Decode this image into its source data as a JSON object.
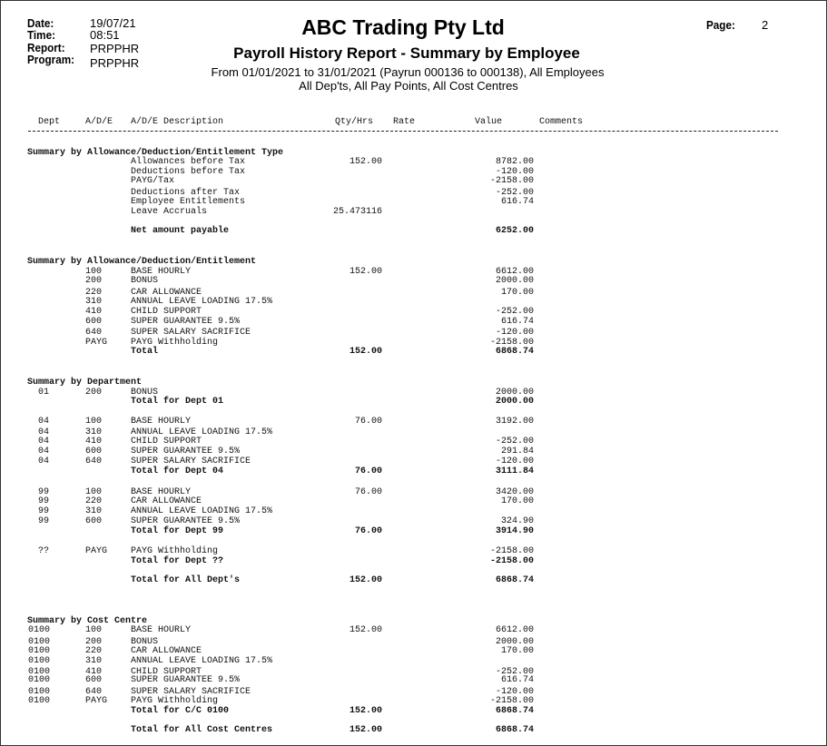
{
  "header": {
    "date_label": "Date:",
    "date": "19/07/21",
    "time_label": "Time:",
    "time": "08:51",
    "report_label": "Report:",
    "report": "PRPPHR",
    "program_label": "Program:",
    "program": "PRPPHR",
    "page_label": "Page:",
    "page": "2",
    "company": "ABC Trading Pty Ltd",
    "title": "Payroll History Report - Summary by Employee",
    "subtitle1": "From 01/01/2021 to 31/01/2021 (Payrun 000136 to 000138), All Employees",
    "subtitle2": "All Dep'ts, All Pay Points, All Cost Centres"
  },
  "columns": {
    "dept": "Dept",
    "ade": "A/D/E",
    "desc": "A/D/E Description",
    "qty": "Qty/Hrs",
    "rate": "Rate",
    "value": "Value",
    "comments": "Comments"
  },
  "rows": [
    {
      "heading": "Summary by Allowance/Deduction/Entitlement Type"
    },
    {
      "desc": "Allowances before Tax",
      "qty": "152.00",
      "value": "8782.00"
    },
    {
      "desc": "Deductions before Tax",
      "value": "-120.00"
    },
    {
      "desc": "PAYG/Tax",
      "value": "-2158.00"
    },
    {
      "desc": "Deductions after Tax",
      "value": "-252.00"
    },
    {
      "desc": "Employee Entitlements",
      "value": "616.74"
    },
    {
      "desc": "Leave Accruals",
      "qty": "25.473116"
    },
    {
      "desc": "Net amount payable",
      "value": "6252.00",
      "bold": true
    },
    {
      "heading": "Summary by Allowance/Deduction/Entitlement"
    },
    {
      "code": "100",
      "desc": "BASE HOURLY",
      "qty": "152.00",
      "value": "6612.00"
    },
    {
      "code": "200",
      "desc": "BONUS",
      "value": "2000.00"
    },
    {
      "code": "220",
      "desc": "CAR ALLOWANCE",
      "value": "170.00"
    },
    {
      "code": "310",
      "desc": "ANNUAL LEAVE LOADING 17.5%"
    },
    {
      "code": "410",
      "desc": "CHILD SUPPORT",
      "value": "-252.00"
    },
    {
      "code": "600",
      "desc": "SUPER GUARANTEE 9.5%",
      "value": "616.74"
    },
    {
      "code": "640",
      "desc": "SUPER SALARY SACRIFICE",
      "value": "-120.00"
    },
    {
      "code": "PAYG",
      "desc": "PAYG Withholding",
      "value": "-2158.00"
    },
    {
      "desc": "Total",
      "qty": "152.00",
      "value": "6868.74",
      "bold": true
    },
    {
      "heading": "Summary by Department"
    },
    {
      "dept": "01",
      "code": "200",
      "desc": "BONUS",
      "value": "2000.00"
    },
    {
      "desc": "Total for Dept 01",
      "value": "2000.00",
      "bold": true
    },
    {
      "dept": "04",
      "code": "100",
      "desc": "BASE HOURLY",
      "qty": "76.00",
      "value": "3192.00"
    },
    {
      "dept": "04",
      "code": "310",
      "desc": "ANNUAL LEAVE LOADING 17.5%"
    },
    {
      "dept": "04",
      "code": "410",
      "desc": "CHILD SUPPORT",
      "value": "-252.00"
    },
    {
      "dept": "04",
      "code": "600",
      "desc": "SUPER GUARANTEE 9.5%",
      "value": "291.84"
    },
    {
      "dept": "04",
      "code": "640",
      "desc": "SUPER SALARY SACRIFICE",
      "value": "-120.00"
    },
    {
      "desc": "Total for Dept 04",
      "qty": "76.00",
      "value": "3111.84",
      "bold": true
    },
    {
      "dept": "99",
      "code": "100",
      "desc": "BASE HOURLY",
      "qty": "76.00",
      "value": "3420.00"
    },
    {
      "dept": "99",
      "code": "220",
      "desc": "CAR ALLOWANCE",
      "value": "170.00"
    },
    {
      "dept": "99",
      "code": "310",
      "desc": "ANNUAL LEAVE LOADING 17.5%"
    },
    {
      "dept": "99",
      "code": "600",
      "desc": "SUPER GUARANTEE 9.5%",
      "value": "324.90"
    },
    {
      "desc": "Total for Dept 99",
      "qty": "76.00",
      "value": "3914.90",
      "bold": true
    },
    {
      "dept": "??",
      "code": "PAYG",
      "desc": "PAYG Withholding",
      "value": "-2158.00"
    },
    {
      "desc": "Total for Dept ??",
      "value": "-2158.00",
      "bold": true
    },
    {
      "desc": "Total for All Dept's",
      "qty": "152.00",
      "value": "6868.74",
      "bold": true
    },
    {
      "heading": "Summary by Cost Centre"
    },
    {
      "dept": "0100",
      "code": "100",
      "desc": "BASE HOURLY",
      "qty": "152.00",
      "value": "6612.00"
    },
    {
      "dept": "0100",
      "code": "200",
      "desc": "BONUS",
      "value": "2000.00"
    },
    {
      "dept": "0100",
      "code": "220",
      "desc": "CAR ALLOWANCE",
      "value": "170.00"
    },
    {
      "dept": "0100",
      "code": "310",
      "desc": "ANNUAL LEAVE LOADING 17.5%"
    },
    {
      "dept": "0100",
      "code": "410",
      "desc": "CHILD SUPPORT",
      "value": "-252.00"
    },
    {
      "dept": "0100",
      "code": "600",
      "desc": "SUPER GUARANTEE 9.5%",
      "value": "616.74"
    },
    {
      "dept": "0100",
      "code": "640",
      "desc": "SUPER SALARY SACRIFICE",
      "value": "-120.00"
    },
    {
      "dept": "0100",
      "code": "PAYG",
      "desc": "PAYG Withholding",
      "value": "-2158.00"
    },
    {
      "desc": "Total for C/C 0100",
      "qty": "152.00",
      "value": "6868.74",
      "bold": true
    },
    {
      "desc": "Total for All Cost Centres",
      "qty": "152.00",
      "value": "6868.74",
      "bold": true
    }
  ]
}
